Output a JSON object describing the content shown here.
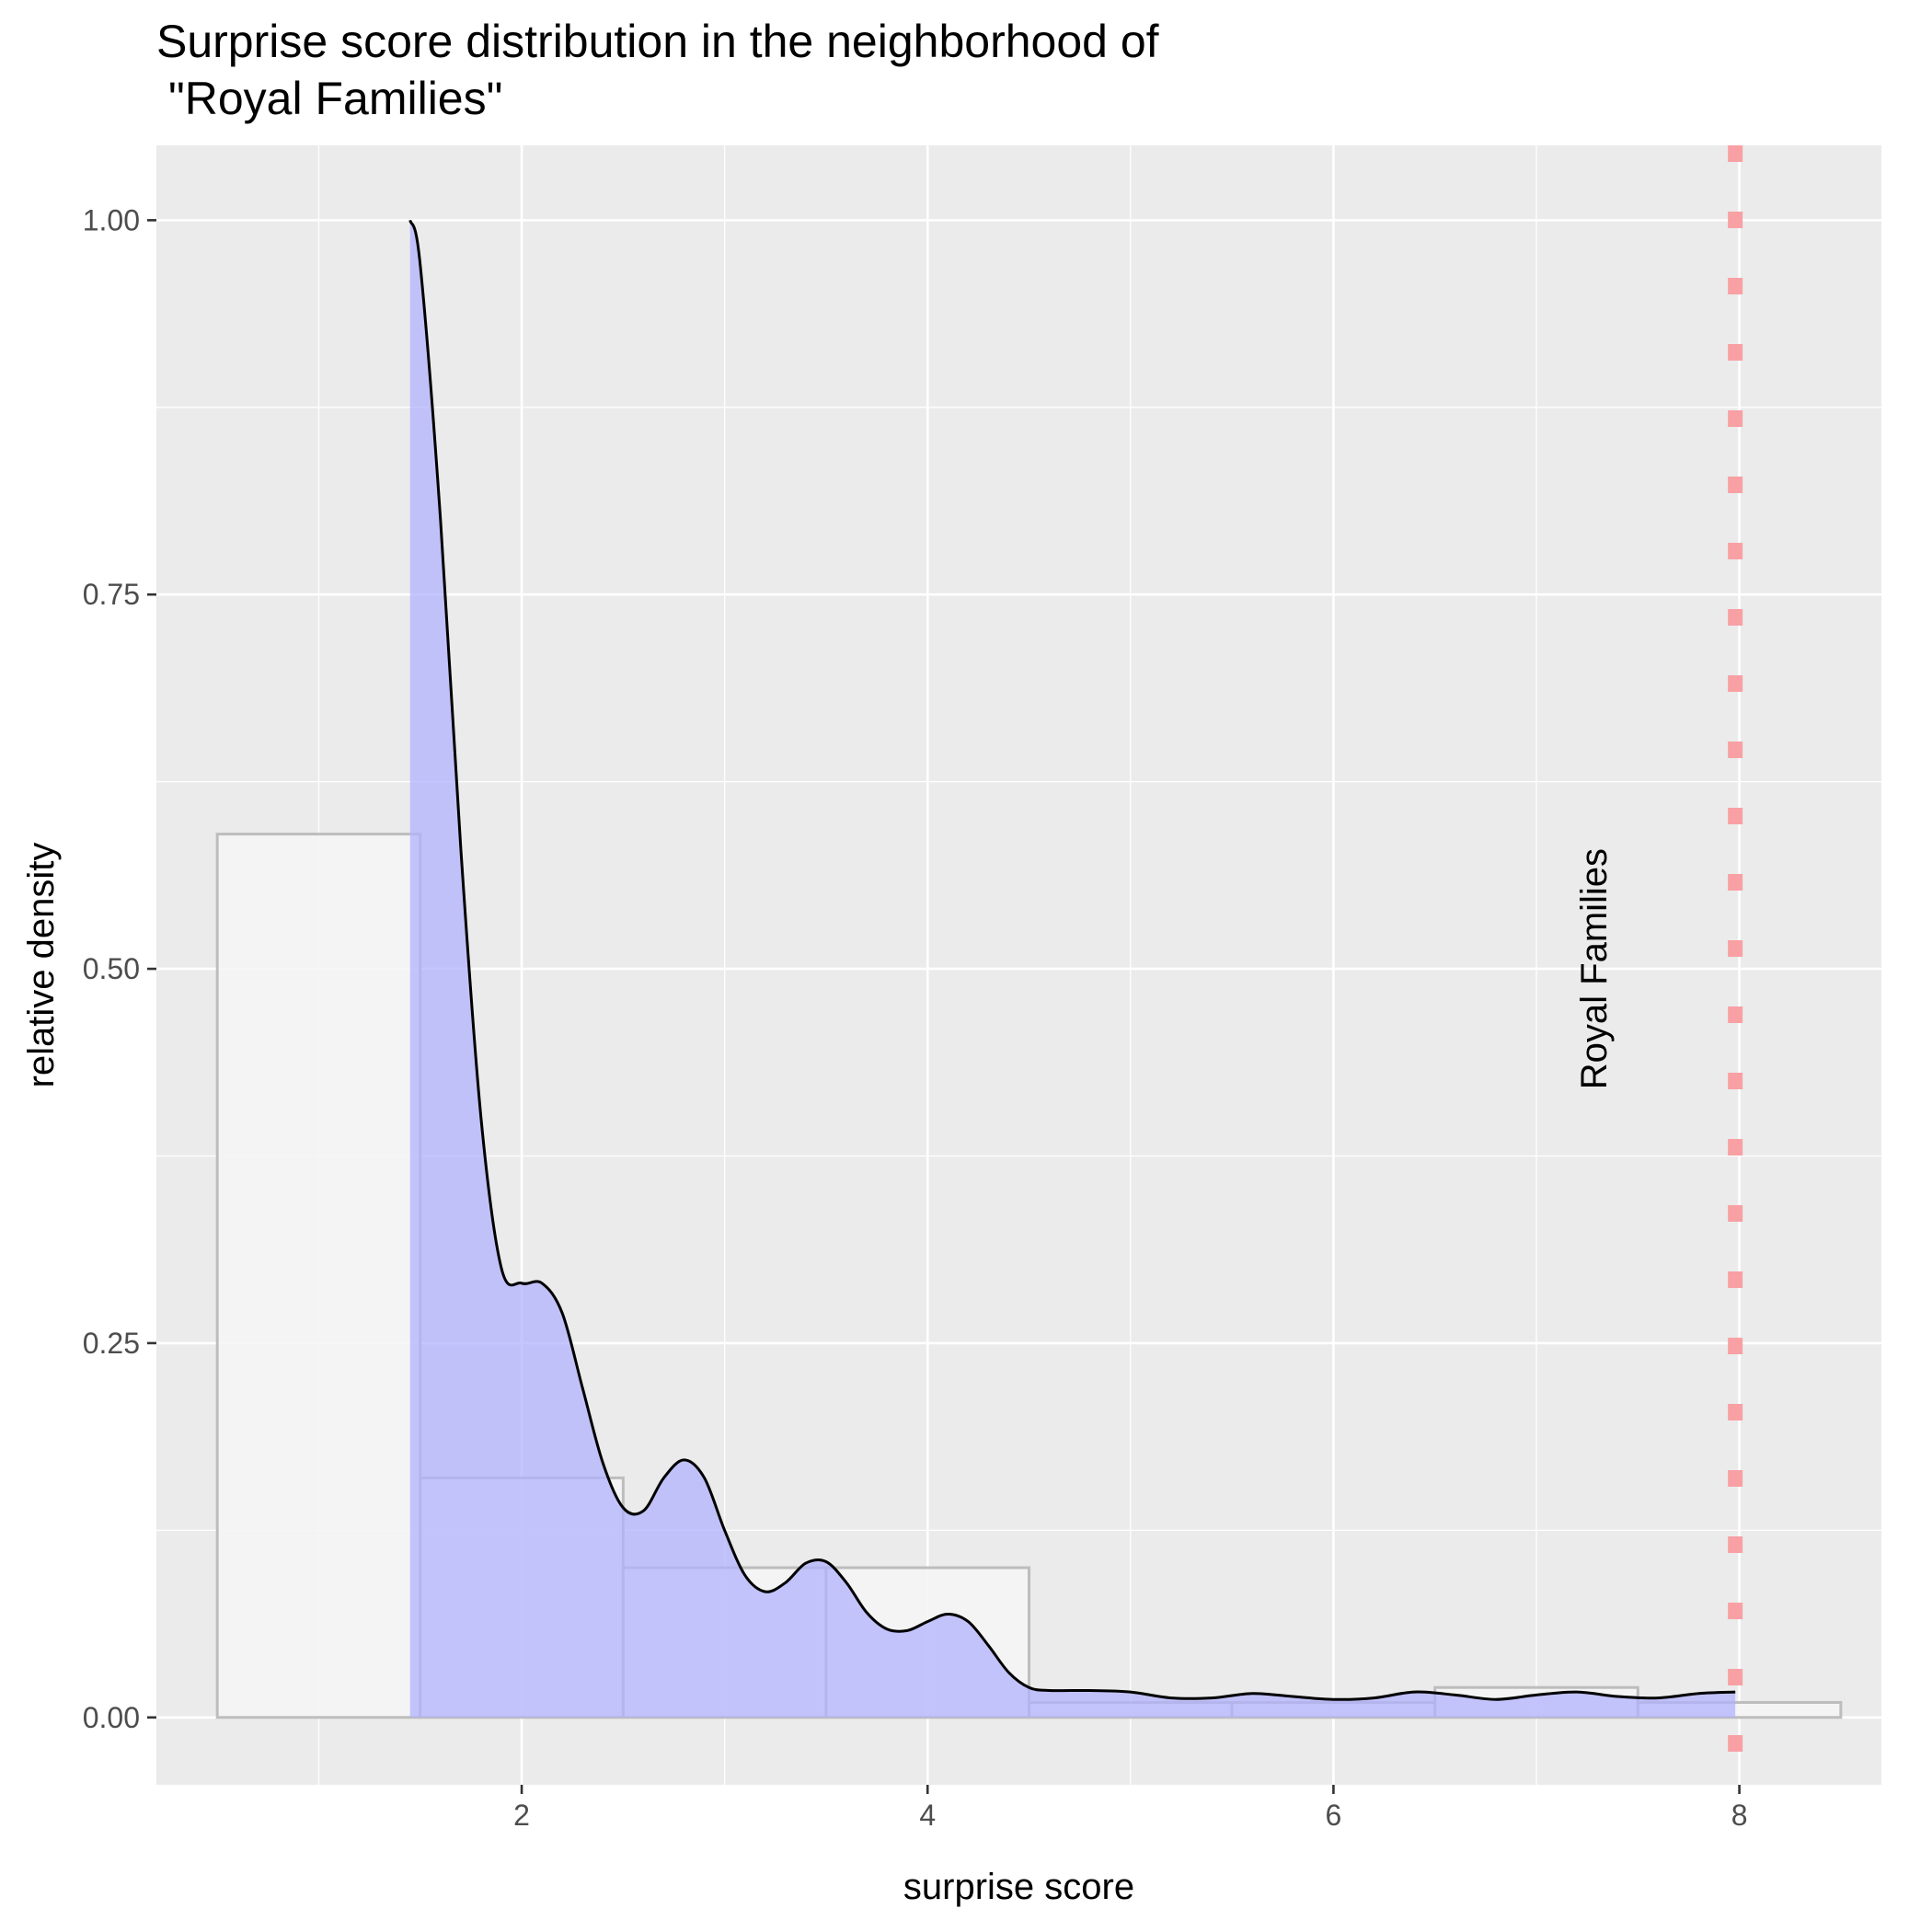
{
  "chart_data": {
    "type": "bar",
    "title_lines": [
      "Surprise score distribution in the neighborhood of",
      "\"Royal Families\""
    ],
    "xlabel": "surprise score",
    "ylabel": "relative density",
    "xlim": [
      0.2,
      8.7
    ],
    "ylim": [
      -0.045,
      1.05
    ],
    "x_ticks": [
      2,
      4,
      6,
      8
    ],
    "x_tick_labels": [
      "2",
      "4",
      "6",
      "8"
    ],
    "y_ticks": [
      0,
      0.25,
      0.5,
      0.75,
      1
    ],
    "y_tick_labels": [
      "0.00",
      "0.25",
      "0.50",
      "0.75",
      "1.00"
    ],
    "grid": true,
    "histogram": {
      "bin_width": 1,
      "bins": [
        {
          "center": 1,
          "value": 0.59
        },
        {
          "center": 2,
          "value": 0.16
        },
        {
          "center": 3,
          "value": 0.1
        },
        {
          "center": 4,
          "value": 0.1
        },
        {
          "center": 5,
          "value": 0.01
        },
        {
          "center": 6,
          "value": 0.01
        },
        {
          "center": 7,
          "value": 0.02
        },
        {
          "center": 8,
          "value": 0.01
        }
      ],
      "fill": "#f5f5f5",
      "stroke": "#bdbdbd"
    },
    "density": {
      "x": [
        1.45,
        1.5,
        1.6,
        1.7,
        1.8,
        1.9,
        2.0,
        2.1,
        2.2,
        2.3,
        2.4,
        2.5,
        2.6,
        2.7,
        2.8,
        2.9,
        3.0,
        3.1,
        3.2,
        3.3,
        3.4,
        3.5,
        3.6,
        3.7,
        3.8,
        3.9,
        4.0,
        4.1,
        4.2,
        4.3,
        4.4,
        4.5,
        4.6,
        4.8,
        5.0,
        5.2,
        5.4,
        5.6,
        5.8,
        6.0,
        6.2,
        6.4,
        6.6,
        6.8,
        7.0,
        7.2,
        7.4,
        7.6,
        7.8,
        7.98
      ],
      "y": [
        1.0,
        0.97,
        0.8,
        0.58,
        0.4,
        0.3,
        0.29,
        0.29,
        0.27,
        0.22,
        0.17,
        0.14,
        0.138,
        0.16,
        0.172,
        0.16,
        0.125,
        0.095,
        0.084,
        0.09,
        0.103,
        0.104,
        0.09,
        0.07,
        0.059,
        0.058,
        0.064,
        0.069,
        0.064,
        0.048,
        0.03,
        0.02,
        0.018,
        0.018,
        0.017,
        0.013,
        0.013,
        0.016,
        0.014,
        0.012,
        0.013,
        0.017,
        0.015,
        0.012,
        0.015,
        0.017,
        0.014,
        0.013,
        0.016,
        0.017
      ],
      "fill": "#b3b3ff",
      "fill_opacity": 0.75,
      "stroke": "#000000"
    },
    "reference_line": {
      "x": 7.98,
      "label": "Royal Families",
      "color": "#f8a0a4"
    },
    "colors": {
      "panel": "#ebebeb",
      "grid": "#ffffff"
    }
  }
}
